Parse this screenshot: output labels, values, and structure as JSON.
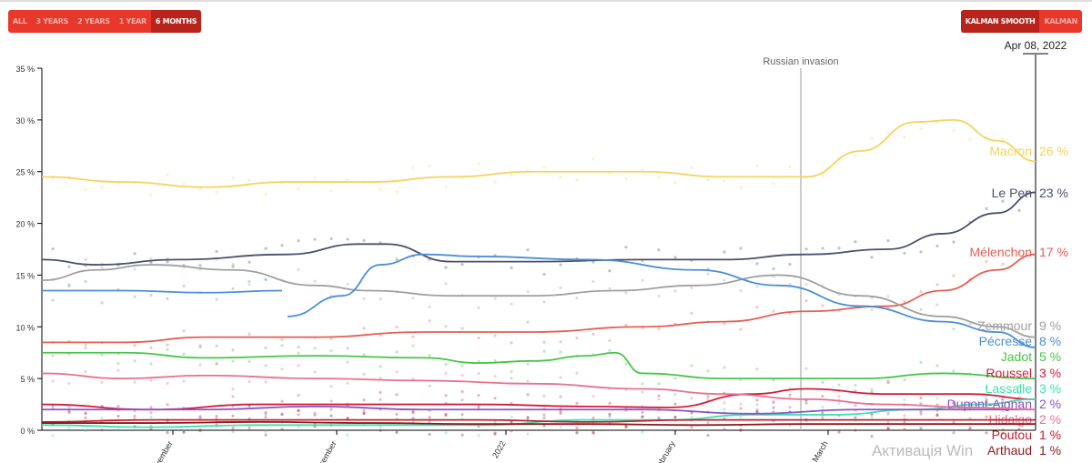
{
  "range_buttons": [
    {
      "label": "ALL"
    },
    {
      "label": "3 YEARS"
    },
    {
      "label": "2 YEARS"
    },
    {
      "label": "1 YEAR"
    },
    {
      "label": "6 MONTHS",
      "active": true
    }
  ],
  "mode_buttons": [
    {
      "label": "KALMAN SMOOTH",
      "active": true
    },
    {
      "label": "KALMAN"
    }
  ],
  "watermark": "Активація Win",
  "chart_data": {
    "type": "line",
    "current_date": "Apr 08, 2022",
    "x_unit": "days since Oct 8, 2021",
    "xlim": [
      0,
      182
    ],
    "ylim": [
      0,
      35
    ],
    "yticks": [
      {
        "v": 0,
        "label": "0 %"
      },
      {
        "v": 5,
        "label": "5 %"
      },
      {
        "v": 10,
        "label": "10 %"
      },
      {
        "v": 15,
        "label": "15 %"
      },
      {
        "v": 20,
        "label": "20 %"
      },
      {
        "v": 25,
        "label": "25 %"
      },
      {
        "v": 30,
        "label": "30 %"
      },
      {
        "v": 35,
        "label": "35 %"
      }
    ],
    "xticks": [
      {
        "v": 24,
        "label": "November"
      },
      {
        "v": 54,
        "label": "December"
      },
      {
        "v": 85,
        "label": "2022"
      },
      {
        "v": 116,
        "label": "February"
      },
      {
        "v": 144,
        "label": "March"
      }
    ],
    "annotation": {
      "v": 139,
      "label": "Russian invasion"
    },
    "series": [
      {
        "name": "Macron",
        "final": "26 %",
        "color": "#f5d35e",
        "x": [
          0,
          15,
          30,
          45,
          60,
          75,
          90,
          110,
          125,
          140,
          150,
          160,
          167,
          175,
          182
        ],
        "y": [
          24.5,
          24,
          23.5,
          24,
          24,
          24.5,
          25,
          25,
          24.5,
          24.5,
          27,
          29.8,
          30,
          28,
          26
        ]
      },
      {
        "name": "Le Pen",
        "final": "23 %",
        "color": "#4b4f6b",
        "x": [
          0,
          10,
          25,
          45,
          58,
          63,
          75,
          90,
          110,
          125,
          140,
          155,
          165,
          175,
          182
        ],
        "y": [
          16.5,
          16,
          16.5,
          17,
          18,
          18,
          16.3,
          16.3,
          16.5,
          16.5,
          17,
          17.5,
          19,
          21,
          23
        ]
      },
      {
        "name": "Mélenchon",
        "final": "17 %",
        "color": "#e45f55",
        "x": [
          0,
          15,
          30,
          50,
          70,
          90,
          110,
          125,
          140,
          155,
          165,
          175,
          182
        ],
        "y": [
          8.5,
          8.5,
          9,
          9,
          9.5,
          9.5,
          10,
          10.5,
          11.5,
          12,
          13.5,
          15.5,
          17
        ]
      },
      {
        "name": "Zemmour",
        "final": "9 %",
        "color": "#a0a0a0",
        "x": [
          0,
          10,
          20,
          35,
          50,
          60,
          75,
          90,
          105,
          120,
          135,
          150,
          165,
          175,
          182
        ],
        "y": [
          14.5,
          15.5,
          16,
          15.5,
          14,
          13.5,
          13,
          13,
          13.5,
          14,
          15,
          13,
          11,
          10,
          9
        ]
      },
      {
        "name": "Pécresse",
        "final": "8 %",
        "color": "#4c8fd6",
        "x": [
          0,
          15,
          30,
          44
        ],
        "y": [
          13.5,
          13.5,
          13.3,
          13.5
        ]
      },
      {
        "name": "Pécresse-2",
        "color": "#4c8fd6",
        "x": [
          45,
          55,
          62,
          70,
          80,
          100,
          120,
          135,
          150,
          165,
          175,
          182
        ],
        "y": [
          11,
          13,
          16,
          17,
          16.8,
          16.5,
          15.5,
          14,
          12,
          10.5,
          9.5,
          8
        ]
      },
      {
        "name": "Jadot",
        "final": "5 %",
        "color": "#46c646",
        "x": [
          0,
          15,
          30,
          50,
          70,
          80,
          90,
          100,
          105,
          110,
          125,
          150,
          165,
          182
        ],
        "y": [
          7.5,
          7.5,
          7,
          7.2,
          7,
          6.5,
          6.7,
          7.2,
          7.5,
          5.5,
          5,
          5,
          5.5,
          5
        ]
      },
      {
        "name": "Roussel",
        "final": "3 %",
        "color": "#d11f3a",
        "x": [
          0,
          20,
          40,
          60,
          80,
          100,
          115,
          130,
          140,
          155,
          170,
          182
        ],
        "y": [
          2.5,
          2,
          2.5,
          2.5,
          2.5,
          2.3,
          2.2,
          3.5,
          4,
          3.5,
          3.5,
          3
        ]
      },
      {
        "name": "Lassalle",
        "final": "3 %",
        "color": "#3fe0b2",
        "x": [
          0,
          20,
          40,
          60,
          80,
          100,
          115,
          130,
          145,
          160,
          172,
          182
        ],
        "y": [
          0.5,
          0.3,
          0.5,
          0.5,
          0.5,
          1,
          1,
          1.5,
          1.5,
          2,
          2.5,
          3
        ]
      },
      {
        "name": "Dupont-Aignan",
        "final": "2 %",
        "color": "#8b52c9",
        "x": [
          0,
          15,
          30,
          50,
          70,
          90,
          110,
          130,
          150,
          165,
          182
        ],
        "y": [
          2,
          2,
          2,
          2.3,
          2,
          2,
          2,
          1.6,
          2,
          2,
          2
        ]
      },
      {
        "name": "Hidalgo",
        "final": "2 %",
        "color": "#e8718f",
        "x": [
          0,
          15,
          30,
          50,
          70,
          90,
          110,
          125,
          140,
          155,
          170,
          182
        ],
        "y": [
          5.5,
          5,
          5.3,
          5,
          4.8,
          4.5,
          4,
          3.5,
          3,
          2.5,
          2.2,
          2
        ]
      },
      {
        "name": "Poutou",
        "final": "1 %",
        "color": "#c42030",
        "x": [
          0,
          20,
          40,
          60,
          80,
          100,
          120,
          140,
          160,
          182
        ],
        "y": [
          0.8,
          1,
          1,
          1,
          1,
          0.8,
          1,
          1,
          1,
          1
        ]
      },
      {
        "name": "Arthaud",
        "final": "1 %",
        "color": "#8c1a1a",
        "x": [
          0,
          20,
          40,
          60,
          80,
          100,
          120,
          140,
          160,
          182
        ],
        "y": [
          0.7,
          0.7,
          0.8,
          0.7,
          0.6,
          0.6,
          0.5,
          0.6,
          0.6,
          0.6
        ]
      }
    ]
  }
}
